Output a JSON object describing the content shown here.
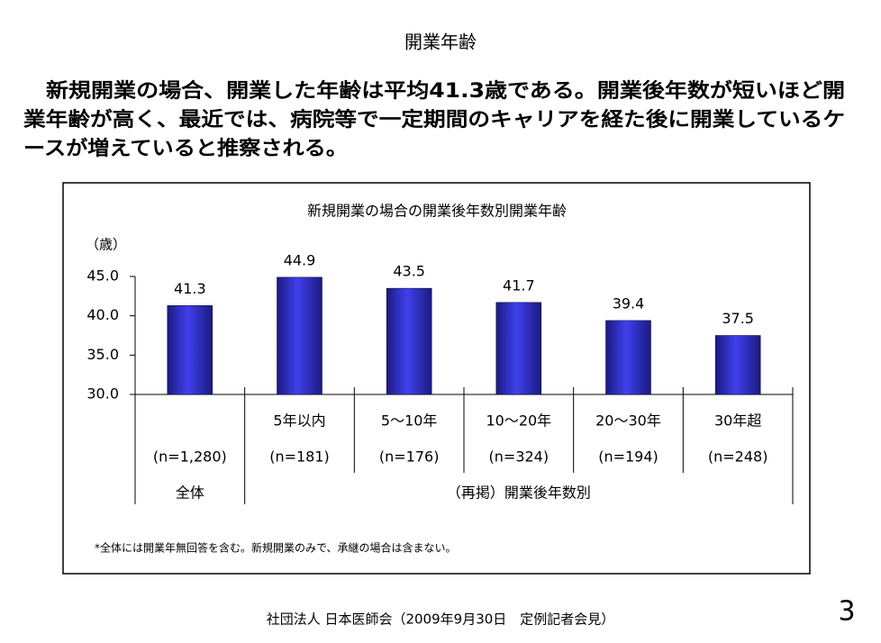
{
  "header": {
    "title": "開業年齢",
    "lines": [
      "　新規開業の場合、開業した年齢は平均41.3歳である。開業後年数が短いほど開",
      "業年齢が高く、最近では、病院等で一定期間のキャリアを経た後に開業しているケ",
      "ースが増えていると推察される。"
    ]
  },
  "chart_data": {
    "type": "bar",
    "title": "新規開業の場合の開業後年数別開業年齢",
    "y_label": "（歳）",
    "categories": [
      null,
      "5年以内",
      "5～10年",
      "10～20年",
      "20～30年",
      "30年超"
    ],
    "sample_sizes": [
      "(n=1,280)",
      "(n=181)",
      "(n=176)",
      "(n=324)",
      "(n=194)",
      "(n=248)"
    ],
    "groups": [
      "全体",
      "（再掲）開業後年数別"
    ],
    "values": [
      41.3,
      44.9,
      43.5,
      41.7,
      39.4,
      37.5
    ],
    "color": "#3333cc",
    "ylim": [
      30,
      45
    ],
    "yticks": [
      {
        "value": 30,
        "label": "30.0"
      },
      {
        "value": 35,
        "label": "35.0"
      },
      {
        "value": 40,
        "label": "40.0"
      },
      {
        "value": 45,
        "label": "45.0"
      }
    ],
    "note": "*全体には開業年無回答を含む。新規開業のみで、承継の場合は含まない。"
  },
  "footer": {
    "source": "社団法人 日本医師会（2009年9月30日　定例記者会見）",
    "page": "3"
  }
}
